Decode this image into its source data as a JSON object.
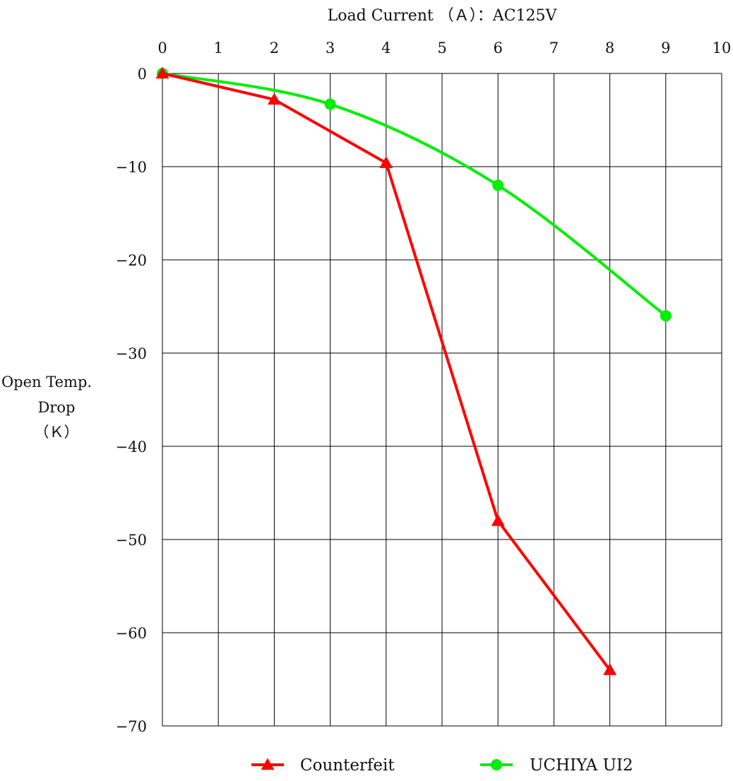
{
  "chart_data": {
    "type": "line",
    "title": "",
    "xlabel": "Load Current （Ａ）：AC125V",
    "ylabel_lines": [
      "Open Temp.",
      "Drop",
      "（Ｋ）"
    ],
    "xlim": [
      0,
      10
    ],
    "ylim": [
      -70,
      0
    ],
    "x_ticks": [
      0,
      1,
      2,
      3,
      4,
      5,
      6,
      7,
      8,
      9,
      10
    ],
    "x_tick_labels": [
      "0",
      "1",
      "2",
      "3",
      "4",
      "5",
      "6",
      "7",
      "8",
      "9",
      "10"
    ],
    "y_ticks": [
      0,
      -10,
      -20,
      -30,
      -40,
      -50,
      -60,
      -70
    ],
    "y_tick_labels": [
      "0",
      "−10",
      "−20",
      "−30",
      "−40",
      "−50",
      "−60",
      "−70"
    ],
    "grid": true,
    "x_axis_position": "top",
    "legend_position": "bottom-center",
    "series": [
      {
        "name": "Counterfeit",
        "color": "#ff0000",
        "marker": "triangle",
        "smooth": false,
        "x": [
          0,
          2,
          4,
          6,
          8
        ],
        "y": [
          0,
          -2.8,
          -9.6,
          -48,
          -64
        ]
      },
      {
        "name": "UCHIYA UI2",
        "color": "#00ee00",
        "marker": "circle",
        "smooth": true,
        "x": [
          0,
          3,
          6,
          9
        ],
        "y": [
          0,
          -3.3,
          -12,
          -26
        ]
      }
    ]
  }
}
